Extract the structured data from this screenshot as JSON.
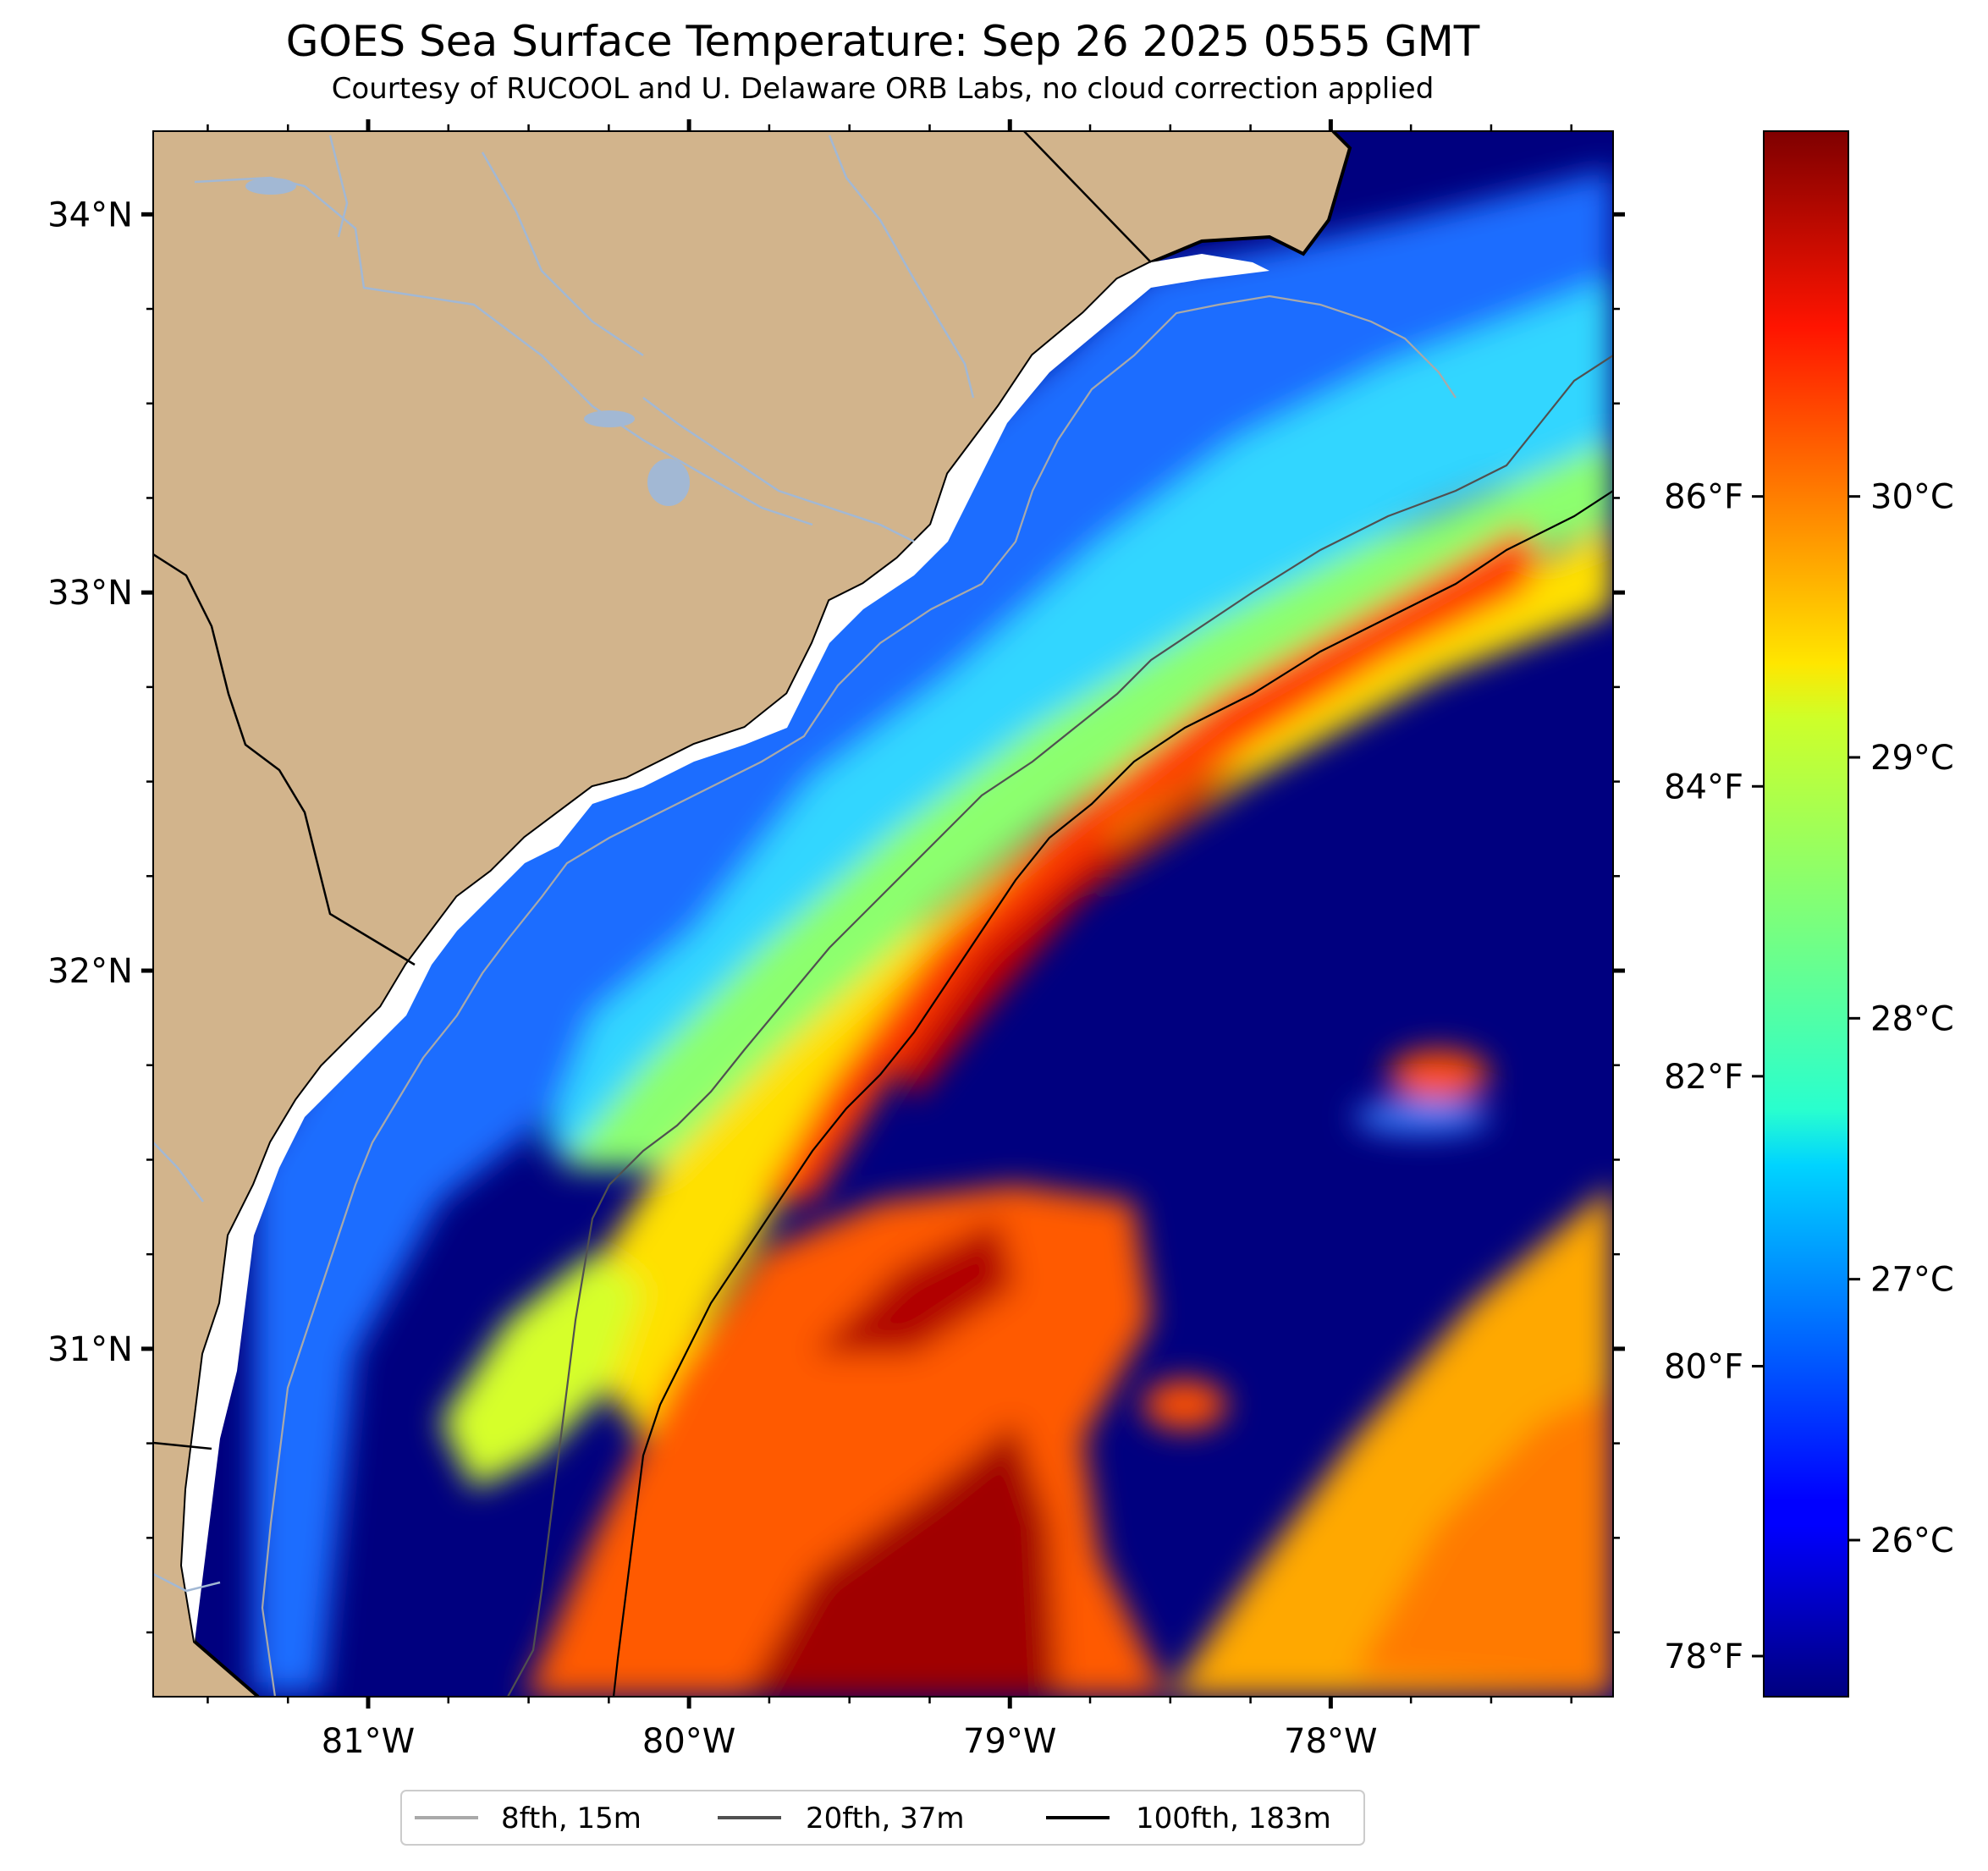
{
  "title": "GOES Sea Surface Temperature: Sep 26 2025 0555 GMT",
  "subtitle": "Courtesy of RUCOOL and U. Delaware ORB Labs, no cloud correction applied",
  "map": {
    "lon_range": [
      -81.67,
      -77.12
    ],
    "lat_range": [
      30.08,
      34.22
    ],
    "lon_ticks": [
      {
        "value": -81,
        "label": "81°W"
      },
      {
        "value": -80,
        "label": "80°W"
      },
      {
        "value": -79,
        "label": "79°W"
      },
      {
        "value": -78,
        "label": "78°W"
      }
    ],
    "lat_ticks": [
      {
        "value": 31,
        "label": "31°N"
      },
      {
        "value": 32,
        "label": "32°N"
      },
      {
        "value": 33,
        "label": "33°N"
      },
      {
        "value": 34,
        "label": "34°N"
      }
    ],
    "colors": {
      "land": "#d2b48c",
      "coast": "#000000",
      "rivers": "#a2b8d4",
      "no_data": "#ffffff"
    },
    "sst_field_description_features": [
      {
        "name": "gulf-stream-front",
        "temp_c": 30.5
      },
      {
        "name": "shelf-water",
        "temp_c": 28.5
      },
      {
        "name": "sargasso-warm-water",
        "temp_c": 29.8
      },
      {
        "name": "offshore-cool-region",
        "temp_c": 25.5
      }
    ]
  },
  "colorbar": {
    "cmap": "jet",
    "range_c": [
      25.4,
      31.4
    ],
    "celsius_ticks": [
      {
        "value": 26,
        "label": "26°C"
      },
      {
        "value": 27,
        "label": "27°C"
      },
      {
        "value": 28,
        "label": "28°C"
      },
      {
        "value": 29,
        "label": "29°C"
      },
      {
        "value": 30,
        "label": "30°C"
      }
    ],
    "fahrenheit_ticks": [
      {
        "value": 78,
        "label": "78°F"
      },
      {
        "value": 80,
        "label": "80°F"
      },
      {
        "value": 82,
        "label": "82°F"
      },
      {
        "value": 84,
        "label": "84°F"
      },
      {
        "value": 86,
        "label": "86°F"
      }
    ]
  },
  "legend": [
    {
      "label": "8fth, 15m",
      "color": "#a9a9a9"
    },
    {
      "label": "20fth, 37m",
      "color": "#505050"
    },
    {
      "label": "100fth, 183m",
      "color": "#000000"
    }
  ]
}
